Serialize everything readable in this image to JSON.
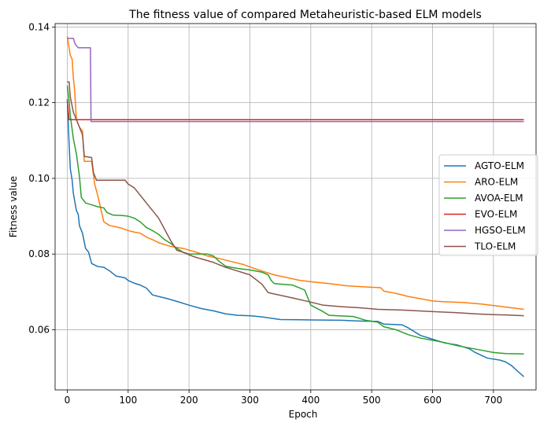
{
  "chart_data": {
    "type": "line",
    "title": "The fitness value of compared Metaheuristic-based ELM models",
    "xlabel": "Epoch",
    "ylabel": "Fitness value",
    "xlim": [
      -20,
      770
    ],
    "ylim": [
      0.0441,
      0.1409
    ],
    "xticks": [
      0,
      100,
      200,
      300,
      400,
      500,
      600,
      700
    ],
    "yticks": [
      0.06,
      0.08,
      0.1,
      0.12,
      0.14
    ],
    "ytick_labels": [
      "0.06",
      "0.08",
      "0.10",
      "0.12",
      "0.14"
    ],
    "grid": true,
    "legend_position": "center right",
    "series": [
      {
        "name": "AGTO-ELM",
        "color": "#1f77b4",
        "points": [
          [
            0,
            0.121
          ],
          [
            3,
            0.109
          ],
          [
            5,
            0.1025
          ],
          [
            8,
            0.0995
          ],
          [
            10,
            0.096
          ],
          [
            15,
            0.0915
          ],
          [
            18,
            0.0905
          ],
          [
            20,
            0.0875
          ],
          [
            25,
            0.0855
          ],
          [
            30,
            0.0815
          ],
          [
            35,
            0.0805
          ],
          [
            40,
            0.0775
          ],
          [
            50,
            0.0767
          ],
          [
            60,
            0.0765
          ],
          [
            70,
            0.0755
          ],
          [
            80,
            0.0742
          ],
          [
            95,
            0.0737
          ],
          [
            100,
            0.073
          ],
          [
            110,
            0.0723
          ],
          [
            120,
            0.0718
          ],
          [
            130,
            0.071
          ],
          [
            140,
            0.0692
          ],
          [
            150,
            0.0688
          ],
          [
            165,
            0.0682
          ],
          [
            180,
            0.0675
          ],
          [
            200,
            0.0665
          ],
          [
            220,
            0.0656
          ],
          [
            240,
            0.065
          ],
          [
            260,
            0.0642
          ],
          [
            280,
            0.0638
          ],
          [
            300,
            0.0637
          ],
          [
            320,
            0.0634
          ],
          [
            350,
            0.0627
          ],
          [
            400,
            0.0626
          ],
          [
            450,
            0.0625
          ],
          [
            480,
            0.0623
          ],
          [
            510,
            0.0622
          ],
          [
            520,
            0.0615
          ],
          [
            550,
            0.0613
          ],
          [
            560,
            0.0605
          ],
          [
            580,
            0.0585
          ],
          [
            600,
            0.0575
          ],
          [
            620,
            0.0565
          ],
          [
            640,
            0.056
          ],
          [
            660,
            0.055
          ],
          [
            670,
            0.054
          ],
          [
            690,
            0.0525
          ],
          [
            710,
            0.052
          ],
          [
            720,
            0.0515
          ],
          [
            730,
            0.0505
          ],
          [
            740,
            0.049
          ],
          [
            750,
            0.0476
          ]
        ]
      },
      {
        "name": "ARO-ELM",
        "color": "#ff7f0e",
        "points": [
          [
            0,
            0.1375
          ],
          [
            3,
            0.1345
          ],
          [
            5,
            0.1325
          ],
          [
            8,
            0.1315
          ],
          [
            10,
            0.1265
          ],
          [
            12,
            0.1235
          ],
          [
            15,
            0.1155
          ],
          [
            20,
            0.1135
          ],
          [
            25,
            0.1125
          ],
          [
            28,
            0.1045
          ],
          [
            40,
            0.1045
          ],
          [
            45,
            0.0985
          ],
          [
            50,
            0.0955
          ],
          [
            55,
            0.092
          ],
          [
            60,
            0.0885
          ],
          [
            70,
            0.0875
          ],
          [
            80,
            0.0872
          ],
          [
            90,
            0.0868
          ],
          [
            100,
            0.0862
          ],
          [
            110,
            0.0858
          ],
          [
            120,
            0.0855
          ],
          [
            130,
            0.0845
          ],
          [
            140,
            0.0838
          ],
          [
            150,
            0.083
          ],
          [
            170,
            0.082
          ],
          [
            190,
            0.0815
          ],
          [
            210,
            0.0806
          ],
          [
            230,
            0.0795
          ],
          [
            250,
            0.0788
          ],
          [
            270,
            0.078
          ],
          [
            290,
            0.0772
          ],
          [
            300,
            0.0766
          ],
          [
            320,
            0.0755
          ],
          [
            340,
            0.0745
          ],
          [
            360,
            0.0738
          ],
          [
            380,
            0.0731
          ],
          [
            400,
            0.0727
          ],
          [
            430,
            0.0722
          ],
          [
            460,
            0.0716
          ],
          [
            490,
            0.0713
          ],
          [
            515,
            0.0711
          ],
          [
            520,
            0.0702
          ],
          [
            540,
            0.0696
          ],
          [
            560,
            0.0688
          ],
          [
            580,
            0.0682
          ],
          [
            600,
            0.0676
          ],
          [
            620,
            0.0674
          ],
          [
            650,
            0.0672
          ],
          [
            680,
            0.0668
          ],
          [
            700,
            0.0664
          ],
          [
            720,
            0.066
          ],
          [
            740,
            0.0656
          ],
          [
            750,
            0.0654
          ]
        ]
      },
      {
        "name": "AVOA-ELM",
        "color": "#2ca02c",
        "points": [
          [
            0,
            0.1245
          ],
          [
            3,
            0.1205
          ],
          [
            5,
            0.1165
          ],
          [
            10,
            0.1105
          ],
          [
            15,
            0.1065
          ],
          [
            20,
            0.1005
          ],
          [
            23,
            0.095
          ],
          [
            30,
            0.0935
          ],
          [
            40,
            0.093
          ],
          [
            50,
            0.0925
          ],
          [
            60,
            0.0922
          ],
          [
            65,
            0.091
          ],
          [
            75,
            0.0903
          ],
          [
            90,
            0.0902
          ],
          [
            100,
            0.09
          ],
          [
            110,
            0.0895
          ],
          [
            120,
            0.0885
          ],
          [
            130,
            0.087
          ],
          [
            140,
            0.0862
          ],
          [
            150,
            0.0852
          ],
          [
            160,
            0.0838
          ],
          [
            170,
            0.0828
          ],
          [
            180,
            0.0815
          ],
          [
            190,
            0.0805
          ],
          [
            200,
            0.08
          ],
          [
            230,
            0.08
          ],
          [
            240,
            0.0795
          ],
          [
            250,
            0.078
          ],
          [
            260,
            0.0768
          ],
          [
            280,
            0.0762
          ],
          [
            300,
            0.0758
          ],
          [
            320,
            0.0752
          ],
          [
            330,
            0.0745
          ],
          [
            335,
            0.073
          ],
          [
            340,
            0.0722
          ],
          [
            370,
            0.0718
          ],
          [
            390,
            0.0705
          ],
          [
            395,
            0.0685
          ],
          [
            400,
            0.0665
          ],
          [
            420,
            0.0648
          ],
          [
            430,
            0.0638
          ],
          [
            470,
            0.0635
          ],
          [
            490,
            0.0625
          ],
          [
            510,
            0.062
          ],
          [
            520,
            0.0608
          ],
          [
            540,
            0.06
          ],
          [
            560,
            0.0587
          ],
          [
            580,
            0.0578
          ],
          [
            600,
            0.0572
          ],
          [
            620,
            0.0566
          ],
          [
            640,
            0.0558
          ],
          [
            660,
            0.0552
          ],
          [
            680,
            0.0546
          ],
          [
            700,
            0.054
          ],
          [
            720,
            0.0537
          ],
          [
            750,
            0.0536
          ]
        ]
      },
      {
        "name": "EVO-ELM",
        "color": "#d62728",
        "points": [
          [
            0,
            0.1205
          ],
          [
            3,
            0.1155
          ],
          [
            750,
            0.1155
          ]
        ]
      },
      {
        "name": "HGSO-ELM",
        "color": "#9467bd",
        "points": [
          [
            0,
            0.137
          ],
          [
            10,
            0.137
          ],
          [
            13,
            0.1355
          ],
          [
            18,
            0.1345
          ],
          [
            38,
            0.1345
          ],
          [
            39,
            0.115
          ],
          [
            750,
            0.115
          ]
        ]
      },
      {
        "name": "TLO-ELM",
        "color": "#8c564b",
        "points": [
          [
            0,
            0.1255
          ],
          [
            3,
            0.1255
          ],
          [
            5,
            0.1215
          ],
          [
            10,
            0.1175
          ],
          [
            15,
            0.1155
          ],
          [
            20,
            0.1135
          ],
          [
            25,
            0.1115
          ],
          [
            28,
            0.1058
          ],
          [
            40,
            0.1055
          ],
          [
            43,
            0.1015
          ],
          [
            48,
            0.0995
          ],
          [
            95,
            0.0995
          ],
          [
            100,
            0.0985
          ],
          [
            110,
            0.0975
          ],
          [
            120,
            0.0955
          ],
          [
            130,
            0.0935
          ],
          [
            140,
            0.0915
          ],
          [
            150,
            0.0895
          ],
          [
            160,
            0.0865
          ],
          [
            170,
            0.0835
          ],
          [
            180,
            0.081
          ],
          [
            190,
            0.0805
          ],
          [
            200,
            0.0798
          ],
          [
            210,
            0.0792
          ],
          [
            225,
            0.0785
          ],
          [
            240,
            0.0778
          ],
          [
            260,
            0.0765
          ],
          [
            280,
            0.0755
          ],
          [
            300,
            0.0745
          ],
          [
            320,
            0.072
          ],
          [
            330,
            0.0698
          ],
          [
            350,
            0.0691
          ],
          [
            370,
            0.0684
          ],
          [
            400,
            0.0673
          ],
          [
            420,
            0.0665
          ],
          [
            450,
            0.0661
          ],
          [
            480,
            0.0658
          ],
          [
            510,
            0.0654
          ],
          [
            550,
            0.0652
          ],
          [
            600,
            0.0648
          ],
          [
            640,
            0.0645
          ],
          [
            670,
            0.0642
          ],
          [
            700,
            0.064
          ],
          [
            720,
            0.0639
          ],
          [
            750,
            0.0637
          ]
        ]
      }
    ]
  }
}
